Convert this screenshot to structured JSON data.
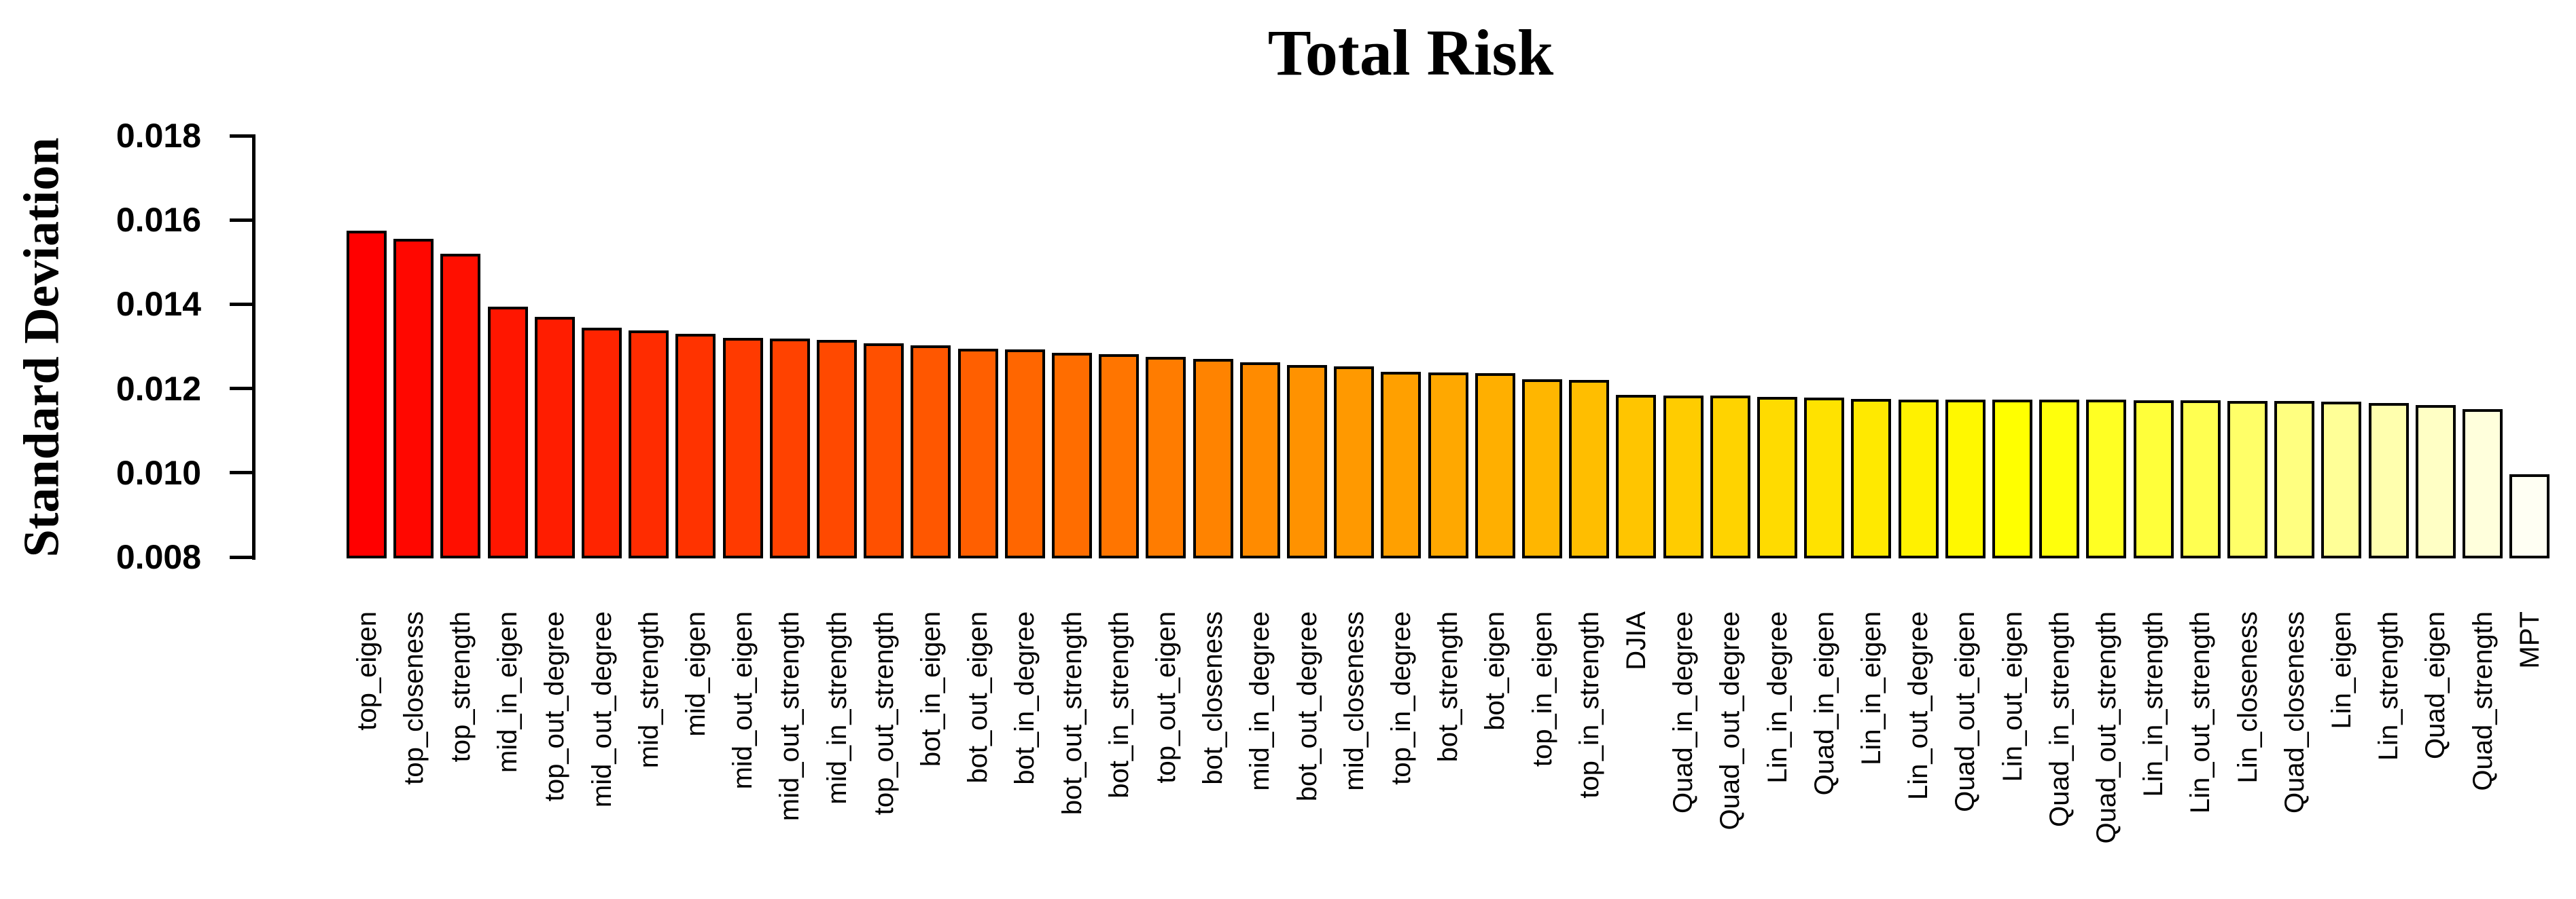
{
  "chart_data": {
    "type": "bar",
    "title": "Total Risk",
    "xlabel": "",
    "ylabel": "Standard Deviation",
    "ylim": [
      0.008,
      0.018
    ],
    "yticks": [
      0.008,
      0.01,
      0.012,
      0.014,
      0.016,
      0.018
    ],
    "ytick_labels": [
      "0.008",
      "0.010",
      "0.012",
      "0.014",
      "0.016",
      "0.018"
    ],
    "grid": false,
    "legend": null,
    "bar_border_color": "#000000",
    "background_color": "#ffffff",
    "palette": "heat-colors-red-yellow-white",
    "categories": [
      "top_eigen",
      "top_closeness",
      "top_strength",
      "mid_in_eigen",
      "top_out_degree",
      "mid_out_degree",
      "mid_strength",
      "mid_eigen",
      "mid_out_eigen",
      "mid_out_strength",
      "mid_in_strength",
      "top_out_strength",
      "bot_in_eigen",
      "bot_out_eigen",
      "bot_in_degree",
      "bot_out_strength",
      "bot_in_strength",
      "top_out_eigen",
      "bot_closeness",
      "mid_in_degree",
      "bot_out_degree",
      "mid_closeness",
      "top_in_degree",
      "bot_strength",
      "bot_eigen",
      "top_in_eigen",
      "top_in_strength",
      "DJIA",
      "Quad_in_degree",
      "Quad_out_degree",
      "Lin_in_degree",
      "Quad_in_eigen",
      "Lin_in_eigen",
      "Lin_out_degree",
      "Quad_out_eigen",
      "Lin_out_eigen",
      "Quad_in_strength",
      "Quad_out_strength",
      "Lin_in_strength",
      "Lin_out_strength",
      "Lin_closeness",
      "Quad_closeness",
      "Lin_eigen",
      "Lin_strength",
      "Quad_eigen",
      "Quad_strength",
      "MPT"
    ],
    "values": [
      0.01575,
      0.01555,
      0.0152,
      0.01395,
      0.0137,
      0.01345,
      0.01338,
      0.0133,
      0.0132,
      0.01318,
      0.01316,
      0.01308,
      0.01302,
      0.01295,
      0.01293,
      0.01284,
      0.01282,
      0.01275,
      0.0127,
      0.01262,
      0.01256,
      0.01253,
      0.0124,
      0.01238,
      0.01236,
      0.01222,
      0.0122,
      0.01185,
      0.01184,
      0.01183,
      0.0118,
      0.01178,
      0.01175,
      0.01173,
      0.01173,
      0.01173,
      0.01173,
      0.01173,
      0.01172,
      0.01172,
      0.01171,
      0.0117,
      0.01168,
      0.01166,
      0.0116,
      0.01151,
      0.00997
    ],
    "colors": [
      "#FF0000",
      "#FF0700",
      "#FF0F00",
      "#FF1600",
      "#FF1D00",
      "#FF2400",
      "#FF2C00",
      "#FF3300",
      "#FF3A00",
      "#FF4200",
      "#FF4900",
      "#FF5000",
      "#FF5700",
      "#FF5F00",
      "#FF6600",
      "#FF6D00",
      "#FF7500",
      "#FF7C00",
      "#FF8300",
      "#FF8B00",
      "#FF9200",
      "#FF9900",
      "#FFA000",
      "#FFA800",
      "#FFAF00",
      "#FFB600",
      "#FFBE00",
      "#FFC500",
      "#FFCC00",
      "#FFD300",
      "#FFDB00",
      "#FFE200",
      "#FFE900",
      "#FFF100",
      "#FFF800",
      "#FFFF00",
      "#FFFF0C",
      "#FFFF23",
      "#FFFF3A",
      "#FFFF51",
      "#FFFF68",
      "#FFFF80",
      "#FFFF97",
      "#FFFFAE",
      "#FFFFC5",
      "#FFFFDC",
      "#FFFFF3"
    ]
  }
}
